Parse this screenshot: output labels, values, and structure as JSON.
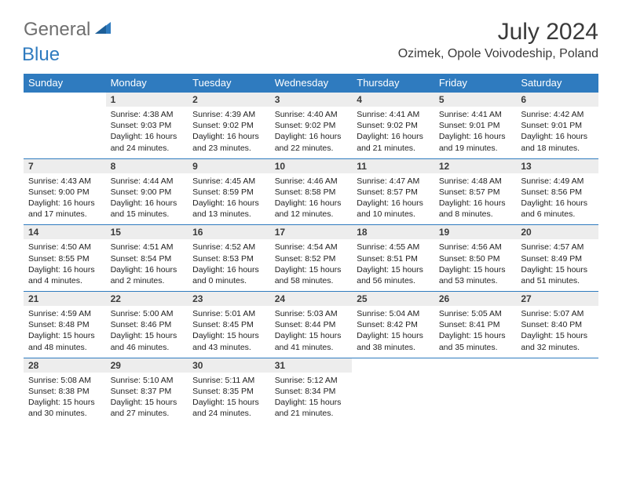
{
  "logo": {
    "text1": "General",
    "text2": "Blue"
  },
  "title": "July 2024",
  "location": "Ozimek, Opole Voivodeship, Poland",
  "colors": {
    "header_bg": "#2f7bbf",
    "daynum_bg": "#ededed",
    "rule": "#2f7bbf"
  },
  "weekdays": [
    "Sunday",
    "Monday",
    "Tuesday",
    "Wednesday",
    "Thursday",
    "Friday",
    "Saturday"
  ],
  "weeks": [
    [
      null,
      {
        "n": "1",
        "sr": "4:38 AM",
        "ss": "9:03 PM",
        "dl": "16 hours and 24 minutes."
      },
      {
        "n": "2",
        "sr": "4:39 AM",
        "ss": "9:02 PM",
        "dl": "16 hours and 23 minutes."
      },
      {
        "n": "3",
        "sr": "4:40 AM",
        "ss": "9:02 PM",
        "dl": "16 hours and 22 minutes."
      },
      {
        "n": "4",
        "sr": "4:41 AM",
        "ss": "9:02 PM",
        "dl": "16 hours and 21 minutes."
      },
      {
        "n": "5",
        "sr": "4:41 AM",
        "ss": "9:01 PM",
        "dl": "16 hours and 19 minutes."
      },
      {
        "n": "6",
        "sr": "4:42 AM",
        "ss": "9:01 PM",
        "dl": "16 hours and 18 minutes."
      }
    ],
    [
      {
        "n": "7",
        "sr": "4:43 AM",
        "ss": "9:00 PM",
        "dl": "16 hours and 17 minutes."
      },
      {
        "n": "8",
        "sr": "4:44 AM",
        "ss": "9:00 PM",
        "dl": "16 hours and 15 minutes."
      },
      {
        "n": "9",
        "sr": "4:45 AM",
        "ss": "8:59 PM",
        "dl": "16 hours and 13 minutes."
      },
      {
        "n": "10",
        "sr": "4:46 AM",
        "ss": "8:58 PM",
        "dl": "16 hours and 12 minutes."
      },
      {
        "n": "11",
        "sr": "4:47 AM",
        "ss": "8:57 PM",
        "dl": "16 hours and 10 minutes."
      },
      {
        "n": "12",
        "sr": "4:48 AM",
        "ss": "8:57 PM",
        "dl": "16 hours and 8 minutes."
      },
      {
        "n": "13",
        "sr": "4:49 AM",
        "ss": "8:56 PM",
        "dl": "16 hours and 6 minutes."
      }
    ],
    [
      {
        "n": "14",
        "sr": "4:50 AM",
        "ss": "8:55 PM",
        "dl": "16 hours and 4 minutes."
      },
      {
        "n": "15",
        "sr": "4:51 AM",
        "ss": "8:54 PM",
        "dl": "16 hours and 2 minutes."
      },
      {
        "n": "16",
        "sr": "4:52 AM",
        "ss": "8:53 PM",
        "dl": "16 hours and 0 minutes."
      },
      {
        "n": "17",
        "sr": "4:54 AM",
        "ss": "8:52 PM",
        "dl": "15 hours and 58 minutes."
      },
      {
        "n": "18",
        "sr": "4:55 AM",
        "ss": "8:51 PM",
        "dl": "15 hours and 56 minutes."
      },
      {
        "n": "19",
        "sr": "4:56 AM",
        "ss": "8:50 PM",
        "dl": "15 hours and 53 minutes."
      },
      {
        "n": "20",
        "sr": "4:57 AM",
        "ss": "8:49 PM",
        "dl": "15 hours and 51 minutes."
      }
    ],
    [
      {
        "n": "21",
        "sr": "4:59 AM",
        "ss": "8:48 PM",
        "dl": "15 hours and 48 minutes."
      },
      {
        "n": "22",
        "sr": "5:00 AM",
        "ss": "8:46 PM",
        "dl": "15 hours and 46 minutes."
      },
      {
        "n": "23",
        "sr": "5:01 AM",
        "ss": "8:45 PM",
        "dl": "15 hours and 43 minutes."
      },
      {
        "n": "24",
        "sr": "5:03 AM",
        "ss": "8:44 PM",
        "dl": "15 hours and 41 minutes."
      },
      {
        "n": "25",
        "sr": "5:04 AM",
        "ss": "8:42 PM",
        "dl": "15 hours and 38 minutes."
      },
      {
        "n": "26",
        "sr": "5:05 AM",
        "ss": "8:41 PM",
        "dl": "15 hours and 35 minutes."
      },
      {
        "n": "27",
        "sr": "5:07 AM",
        "ss": "8:40 PM",
        "dl": "15 hours and 32 minutes."
      }
    ],
    [
      {
        "n": "28",
        "sr": "5:08 AM",
        "ss": "8:38 PM",
        "dl": "15 hours and 30 minutes."
      },
      {
        "n": "29",
        "sr": "5:10 AM",
        "ss": "8:37 PM",
        "dl": "15 hours and 27 minutes."
      },
      {
        "n": "30",
        "sr": "5:11 AM",
        "ss": "8:35 PM",
        "dl": "15 hours and 24 minutes."
      },
      {
        "n": "31",
        "sr": "5:12 AM",
        "ss": "8:34 PM",
        "dl": "15 hours and 21 minutes."
      },
      null,
      null,
      null
    ]
  ],
  "labels": {
    "sunrise": "Sunrise:",
    "sunset": "Sunset:",
    "daylight": "Daylight:"
  }
}
